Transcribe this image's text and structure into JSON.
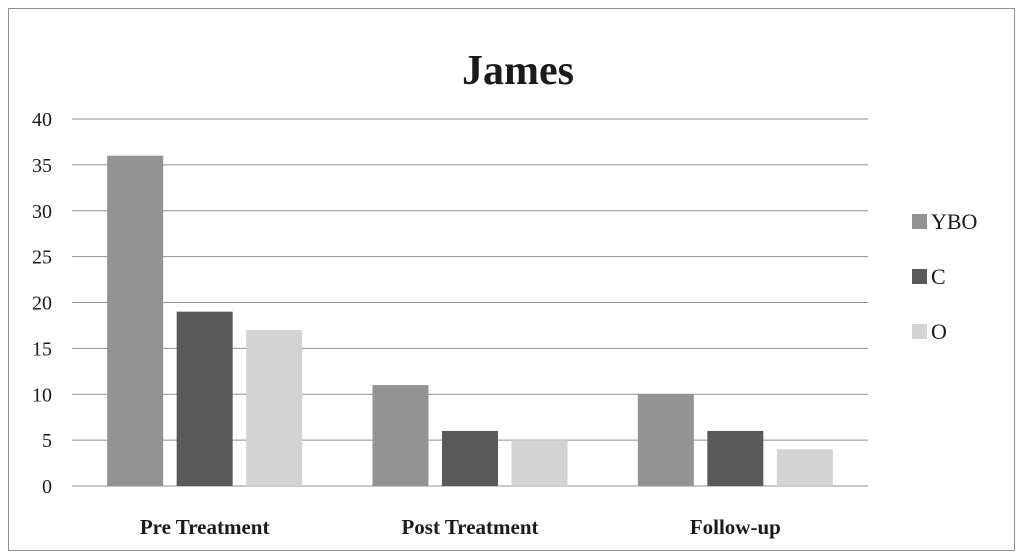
{
  "chart_data": {
    "type": "bar",
    "title": "James",
    "xlabel": "",
    "ylabel": "",
    "categories": [
      "Pre Treatment",
      "Post Treatment",
      "Follow-up"
    ],
    "series": [
      {
        "name": "YBO",
        "values": [
          36,
          11,
          10
        ],
        "color": "#939393"
      },
      {
        "name": "C",
        "values": [
          19,
          6,
          6
        ],
        "color": "#595959"
      },
      {
        "name": "O",
        "values": [
          17,
          5,
          4
        ],
        "color": "#d3d3d3"
      }
    ],
    "ylim": [
      0,
      40
    ],
    "yticks": [
      0,
      5,
      10,
      15,
      20,
      25,
      30,
      35,
      40
    ],
    "grid": true,
    "legend": "right",
    "gridline_color": "#8f8f8f"
  }
}
